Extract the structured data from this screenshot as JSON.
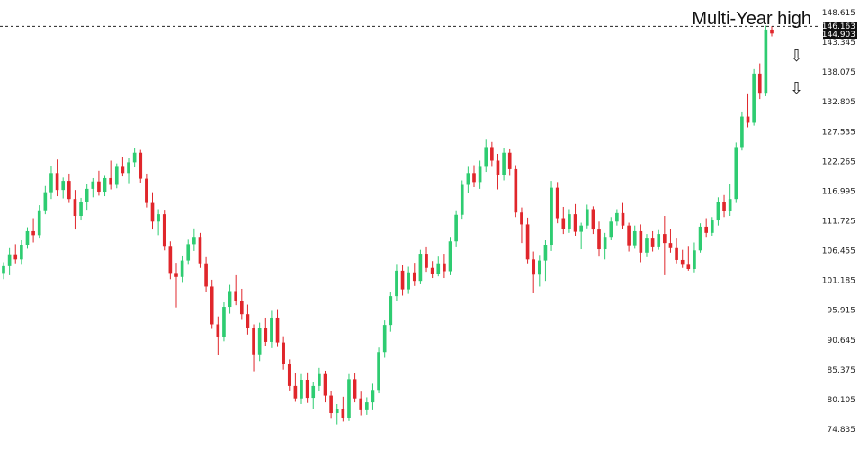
{
  "chart_data": {
    "type": "candlestick",
    "title": "",
    "xlabel": "",
    "ylabel": "",
    "ylim": [
      74.835,
      148.615
    ],
    "y_ticks": [
      "148.615",
      "143.345",
      "138.075",
      "132.805",
      "127.535",
      "122.265",
      "116.995",
      "111.725",
      "106.455",
      "101.185",
      "95.915",
      "90.645",
      "85.375",
      "80.105",
      "74.835"
    ],
    "grid": false,
    "price_tags": [
      "146.163",
      "144.903"
    ],
    "reference_line": {
      "value": 146.163,
      "style": "dashed"
    },
    "annotation": "Multi-Year high",
    "arrows": [
      "down",
      "down"
    ],
    "colors": {
      "up": "#2ecc71",
      "down": "#e0262b",
      "text": "#222222",
      "tag_bg": "#111111"
    },
    "candles": [
      {
        "o": 102.5,
        "h": 104.4,
        "l": 101.4,
        "c": 103.7
      },
      {
        "o": 103.7,
        "h": 106.9,
        "l": 102.1,
        "c": 105.8
      },
      {
        "o": 105.8,
        "h": 107.6,
        "l": 104.2,
        "c": 104.9
      },
      {
        "o": 104.9,
        "h": 108.3,
        "l": 104.1,
        "c": 107.5
      },
      {
        "o": 107.5,
        "h": 110.6,
        "l": 106.8,
        "c": 109.9
      },
      {
        "o": 109.9,
        "h": 112.2,
        "l": 107.9,
        "c": 109.2
      },
      {
        "o": 109.2,
        "h": 114.5,
        "l": 108.6,
        "c": 113.6
      },
      {
        "o": 113.6,
        "h": 117.9,
        "l": 112.9,
        "c": 116.8
      },
      {
        "o": 116.8,
        "h": 121.4,
        "l": 115.6,
        "c": 120.2
      },
      {
        "o": 120.2,
        "h": 122.6,
        "l": 116.1,
        "c": 117.2
      },
      {
        "o": 117.2,
        "h": 119.4,
        "l": 115.7,
        "c": 118.8
      },
      {
        "o": 118.8,
        "h": 120.1,
        "l": 114.9,
        "c": 115.6
      },
      {
        "o": 115.6,
        "h": 117.2,
        "l": 110.2,
        "c": 112.6
      },
      {
        "o": 112.6,
        "h": 115.8,
        "l": 111.8,
        "c": 115.1
      },
      {
        "o": 115.1,
        "h": 118.2,
        "l": 113.7,
        "c": 117.4
      },
      {
        "o": 117.4,
        "h": 119.3,
        "l": 115.9,
        "c": 118.7
      },
      {
        "o": 118.7,
        "h": 120.6,
        "l": 116.2,
        "c": 116.9
      },
      {
        "o": 116.9,
        "h": 119.7,
        "l": 116.1,
        "c": 119.3
      },
      {
        "o": 119.3,
        "h": 122.4,
        "l": 117.3,
        "c": 118.1
      },
      {
        "o": 118.1,
        "h": 121.9,
        "l": 117.5,
        "c": 121.3
      },
      {
        "o": 121.3,
        "h": 123.1,
        "l": 119.6,
        "c": 120.2
      },
      {
        "o": 120.2,
        "h": 122.8,
        "l": 118.4,
        "c": 122.1
      },
      {
        "o": 122.1,
        "h": 124.6,
        "l": 121.2,
        "c": 123.8
      },
      {
        "o": 123.8,
        "h": 124.3,
        "l": 118.5,
        "c": 119.2
      },
      {
        "o": 119.2,
        "h": 120.1,
        "l": 114.1,
        "c": 114.9
      },
      {
        "o": 114.9,
        "h": 116.8,
        "l": 110.2,
        "c": 111.6
      },
      {
        "o": 111.6,
        "h": 113.8,
        "l": 109.2,
        "c": 112.9
      },
      {
        "o": 112.9,
        "h": 113.7,
        "l": 106.5,
        "c": 107.3
      },
      {
        "o": 107.3,
        "h": 108.1,
        "l": 101.4,
        "c": 102.5
      },
      {
        "o": 102.5,
        "h": 104.3,
        "l": 96.4,
        "c": 101.8
      },
      {
        "o": 101.8,
        "h": 105.6,
        "l": 100.9,
        "c": 104.7
      },
      {
        "o": 104.7,
        "h": 108.4,
        "l": 104.1,
        "c": 107.6
      },
      {
        "o": 107.6,
        "h": 110.4,
        "l": 106.4,
        "c": 108.9
      },
      {
        "o": 108.9,
        "h": 109.6,
        "l": 103.4,
        "c": 104.2
      },
      {
        "o": 104.2,
        "h": 105.3,
        "l": 99.2,
        "c": 100.1
      },
      {
        "o": 100.1,
        "h": 101.3,
        "l": 92.6,
        "c": 93.4
      },
      {
        "o": 93.4,
        "h": 94.8,
        "l": 87.9,
        "c": 91.2
      },
      {
        "o": 91.2,
        "h": 97.3,
        "l": 90.4,
        "c": 96.5
      },
      {
        "o": 96.5,
        "h": 100.4,
        "l": 95.3,
        "c": 99.3
      },
      {
        "o": 99.3,
        "h": 102.1,
        "l": 96.8,
        "c": 97.6
      },
      {
        "o": 97.6,
        "h": 99.7,
        "l": 94.2,
        "c": 95.2
      },
      {
        "o": 95.2,
        "h": 96.9,
        "l": 91.6,
        "c": 92.7
      },
      {
        "o": 92.7,
        "h": 93.4,
        "l": 85.1,
        "c": 88.1
      },
      {
        "o": 88.1,
        "h": 93.7,
        "l": 86.9,
        "c": 92.8
      },
      {
        "o": 92.8,
        "h": 94.6,
        "l": 89.6,
        "c": 90.3
      },
      {
        "o": 90.3,
        "h": 95.8,
        "l": 89.2,
        "c": 94.6
      },
      {
        "o": 94.6,
        "h": 96.1,
        "l": 89.4,
        "c": 90.2
      },
      {
        "o": 90.2,
        "h": 91.3,
        "l": 85.4,
        "c": 86.4
      },
      {
        "o": 86.4,
        "h": 87.2,
        "l": 81.7,
        "c": 82.5
      },
      {
        "o": 82.5,
        "h": 84.8,
        "l": 79.7,
        "c": 80.3
      },
      {
        "o": 80.3,
        "h": 84.6,
        "l": 79.3,
        "c": 83.6
      },
      {
        "o": 83.6,
        "h": 84.9,
        "l": 79.5,
        "c": 80.4
      },
      {
        "o": 80.4,
        "h": 83.2,
        "l": 78.4,
        "c": 82.5
      },
      {
        "o": 82.5,
        "h": 85.7,
        "l": 81.6,
        "c": 84.6
      },
      {
        "o": 84.6,
        "h": 85.2,
        "l": 79.6,
        "c": 80.8
      },
      {
        "o": 80.8,
        "h": 81.6,
        "l": 76.7,
        "c": 77.7
      },
      {
        "o": 77.7,
        "h": 79.3,
        "l": 75.7,
        "c": 78.5
      },
      {
        "o": 78.5,
        "h": 80.6,
        "l": 76.2,
        "c": 76.9
      },
      {
        "o": 76.9,
        "h": 84.6,
        "l": 76.3,
        "c": 83.7
      },
      {
        "o": 83.7,
        "h": 84.8,
        "l": 79.6,
        "c": 80.3
      },
      {
        "o": 80.3,
        "h": 81.5,
        "l": 77.3,
        "c": 78.2
      },
      {
        "o": 78.2,
        "h": 80.5,
        "l": 77.4,
        "c": 79.6
      },
      {
        "o": 79.6,
        "h": 82.9,
        "l": 78.2,
        "c": 81.8
      },
      {
        "o": 81.8,
        "h": 89.3,
        "l": 81.2,
        "c": 88.5
      },
      {
        "o": 88.5,
        "h": 94.1,
        "l": 87.5,
        "c": 93.3
      },
      {
        "o": 93.3,
        "h": 99.2,
        "l": 92.1,
        "c": 98.4
      },
      {
        "o": 98.4,
        "h": 104.1,
        "l": 97.5,
        "c": 102.9
      },
      {
        "o": 102.9,
        "h": 103.9,
        "l": 98.5,
        "c": 99.6
      },
      {
        "o": 99.6,
        "h": 103.6,
        "l": 98.8,
        "c": 102.6
      },
      {
        "o": 102.6,
        "h": 104.3,
        "l": 100.2,
        "c": 101.1
      },
      {
        "o": 101.1,
        "h": 106.6,
        "l": 100.5,
        "c": 105.9
      },
      {
        "o": 105.9,
        "h": 107.2,
        "l": 102.7,
        "c": 103.4
      },
      {
        "o": 103.4,
        "h": 104.6,
        "l": 101.6,
        "c": 102.3
      },
      {
        "o": 102.3,
        "h": 105.4,
        "l": 101.9,
        "c": 104.2
      },
      {
        "o": 104.2,
        "h": 105.9,
        "l": 101.6,
        "c": 102.8
      },
      {
        "o": 102.8,
        "h": 108.9,
        "l": 102.1,
        "c": 108.1
      },
      {
        "o": 108.1,
        "h": 113.6,
        "l": 107.2,
        "c": 112.8
      },
      {
        "o": 112.8,
        "h": 118.9,
        "l": 112.1,
        "c": 118.1
      },
      {
        "o": 118.1,
        "h": 121.3,
        "l": 116.6,
        "c": 120.2
      },
      {
        "o": 120.2,
        "h": 121.6,
        "l": 117.7,
        "c": 118.6
      },
      {
        "o": 118.6,
        "h": 122.4,
        "l": 117.4,
        "c": 121.3
      },
      {
        "o": 121.3,
        "h": 126.1,
        "l": 120.4,
        "c": 124.8
      },
      {
        "o": 124.8,
        "h": 125.7,
        "l": 121.3,
        "c": 122.4
      },
      {
        "o": 122.4,
        "h": 123.6,
        "l": 117.3,
        "c": 119.8
      },
      {
        "o": 119.8,
        "h": 124.6,
        "l": 118.9,
        "c": 123.8
      },
      {
        "o": 123.8,
        "h": 124.4,
        "l": 119.7,
        "c": 120.9
      },
      {
        "o": 120.9,
        "h": 121.6,
        "l": 112.4,
        "c": 113.2
      },
      {
        "o": 113.2,
        "h": 114.1,
        "l": 107.8,
        "c": 111.1
      },
      {
        "o": 111.1,
        "h": 112.3,
        "l": 104.2,
        "c": 104.9
      },
      {
        "o": 104.9,
        "h": 106.3,
        "l": 98.9,
        "c": 102.2
      },
      {
        "o": 102.2,
        "h": 105.7,
        "l": 100.1,
        "c": 104.7
      },
      {
        "o": 104.7,
        "h": 108.3,
        "l": 101.1,
        "c": 107.5
      },
      {
        "o": 107.5,
        "h": 118.8,
        "l": 106.4,
        "c": 117.6
      },
      {
        "o": 117.6,
        "h": 118.6,
        "l": 111.3,
        "c": 112.2
      },
      {
        "o": 112.2,
        "h": 114.2,
        "l": 109.4,
        "c": 110.3
      },
      {
        "o": 110.3,
        "h": 113.8,
        "l": 109.6,
        "c": 112.9
      },
      {
        "o": 112.9,
        "h": 114.7,
        "l": 109.1,
        "c": 109.8
      },
      {
        "o": 109.8,
        "h": 111.4,
        "l": 106.7,
        "c": 110.9
      },
      {
        "o": 110.9,
        "h": 114.6,
        "l": 110.4,
        "c": 113.8
      },
      {
        "o": 113.8,
        "h": 114.3,
        "l": 109.4,
        "c": 110.2
      },
      {
        "o": 110.2,
        "h": 111.6,
        "l": 105.4,
        "c": 106.7
      },
      {
        "o": 106.7,
        "h": 109.6,
        "l": 104.9,
        "c": 108.9
      },
      {
        "o": 108.9,
        "h": 112.4,
        "l": 108.3,
        "c": 111.6
      },
      {
        "o": 111.6,
        "h": 113.8,
        "l": 110.9,
        "c": 113.1
      },
      {
        "o": 113.1,
        "h": 114.9,
        "l": 110.3,
        "c": 110.9
      },
      {
        "o": 110.9,
        "h": 111.4,
        "l": 106.3,
        "c": 107.4
      },
      {
        "o": 107.4,
        "h": 110.9,
        "l": 106.8,
        "c": 109.9
      },
      {
        "o": 109.9,
        "h": 111.1,
        "l": 104.4,
        "c": 106.1
      },
      {
        "o": 106.1,
        "h": 109.4,
        "l": 105.3,
        "c": 108.6
      },
      {
        "o": 108.6,
        "h": 109.9,
        "l": 106.3,
        "c": 107.2
      },
      {
        "o": 107.2,
        "h": 110.1,
        "l": 106.6,
        "c": 109.4
      },
      {
        "o": 109.4,
        "h": 112.6,
        "l": 102.1,
        "c": 107.8
      },
      {
        "o": 107.8,
        "h": 110.3,
        "l": 106.1,
        "c": 106.9
      },
      {
        "o": 106.9,
        "h": 108.6,
        "l": 104.2,
        "c": 104.8
      },
      {
        "o": 104.8,
        "h": 106.6,
        "l": 103.4,
        "c": 104.1
      },
      {
        "o": 104.1,
        "h": 107.3,
        "l": 102.9,
        "c": 103.2
      },
      {
        "o": 103.2,
        "h": 107.9,
        "l": 102.6,
        "c": 106.5
      },
      {
        "o": 106.5,
        "h": 111.3,
        "l": 106.1,
        "c": 110.7
      },
      {
        "o": 110.7,
        "h": 112.2,
        "l": 108.9,
        "c": 109.6
      },
      {
        "o": 109.6,
        "h": 112.4,
        "l": 109.1,
        "c": 111.8
      },
      {
        "o": 111.8,
        "h": 115.9,
        "l": 110.9,
        "c": 115.1
      },
      {
        "o": 115.1,
        "h": 116.3,
        "l": 112.4,
        "c": 113.4
      },
      {
        "o": 113.4,
        "h": 118.2,
        "l": 112.6,
        "c": 115.6
      },
      {
        "o": 115.6,
        "h": 125.6,
        "l": 114.9,
        "c": 124.8
      },
      {
        "o": 124.8,
        "h": 131.1,
        "l": 124.2,
        "c": 130.2
      },
      {
        "o": 130.2,
        "h": 134.3,
        "l": 128.3,
        "c": 129.1
      },
      {
        "o": 129.1,
        "h": 138.6,
        "l": 128.6,
        "c": 137.8
      },
      {
        "o": 137.8,
        "h": 139.6,
        "l": 133.3,
        "c": 134.4
      },
      {
        "o": 134.4,
        "h": 146.3,
        "l": 133.8,
        "c": 145.6
      },
      {
        "o": 145.6,
        "h": 146.2,
        "l": 144.4,
        "c": 144.9
      }
    ]
  }
}
